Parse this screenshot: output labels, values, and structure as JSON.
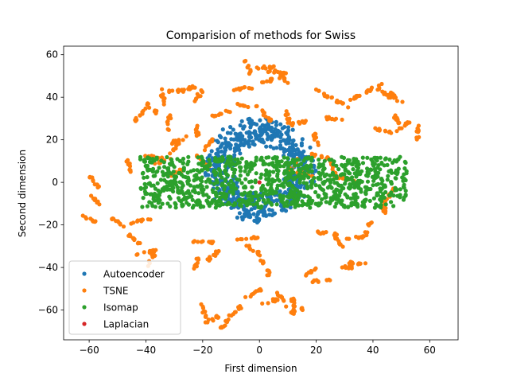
{
  "chart_data": {
    "type": "scatter",
    "title": "Comparision of methods for Swiss",
    "xlabel": "First dimension",
    "ylabel": "Second dimension",
    "xlim": [
      -69,
      70
    ],
    "ylim": [
      -74,
      64
    ],
    "xticks": [
      -60,
      -40,
      -20,
      0,
      20,
      40,
      60
    ],
    "yticks": [
      -60,
      -40,
      -20,
      0,
      20,
      40,
      60
    ],
    "grid": false,
    "legend_position": "lower-left",
    "series": [
      {
        "name": "Autoencoder",
        "color": "#1f77b4",
        "shape": "ring",
        "center": [
          0,
          6
        ],
        "radius_x": [
          9,
          20
        ],
        "radius_y": [
          11,
          25
        ],
        "count": 600
      },
      {
        "name": "TSNE",
        "color": "#ff7f0e",
        "shape": "clusters",
        "clusters": [
          [
            -60,
            -17
          ],
          [
            -58,
            -8
          ],
          [
            -58,
            0
          ],
          [
            -50,
            -19
          ],
          [
            -46,
            8
          ],
          [
            -42,
            -18
          ],
          [
            -44,
            -27
          ],
          [
            -40,
            -33
          ],
          [
            -38,
            -36
          ],
          [
            -42,
            32
          ],
          [
            -38,
            35
          ],
          [
            -34,
            40
          ],
          [
            -30,
            43
          ],
          [
            -26,
            44
          ],
          [
            -22,
            40
          ],
          [
            -32,
            28
          ],
          [
            -28,
            20
          ],
          [
            -22,
            24
          ],
          [
            -20,
            10
          ],
          [
            -18,
            18
          ],
          [
            -14,
            32
          ],
          [
            -20,
            -28
          ],
          [
            -16,
            -34
          ],
          [
            -22,
            -38
          ],
          [
            -20,
            -60
          ],
          [
            -16,
            -64
          ],
          [
            -12,
            -66
          ],
          [
            -8,
            -60
          ],
          [
            -4,
            -26
          ],
          [
            -2,
            -32
          ],
          [
            2,
            -40
          ],
          [
            -2,
            -52
          ],
          [
            4,
            -56
          ],
          [
            8,
            -55
          ],
          [
            12,
            -58
          ],
          [
            14,
            -60
          ],
          [
            -6,
            44
          ],
          [
            -4,
            54
          ],
          [
            2,
            54
          ],
          [
            6,
            52
          ],
          [
            8,
            50
          ],
          [
            4,
            48
          ],
          [
            -4,
            36
          ],
          [
            2,
            32
          ],
          [
            10,
            30
          ],
          [
            14,
            28
          ],
          [
            18,
            -42
          ],
          [
            22,
            -46
          ],
          [
            24,
            -24
          ],
          [
            28,
            -28
          ],
          [
            30,
            -40
          ],
          [
            34,
            -38
          ],
          [
            34,
            -26
          ],
          [
            38,
            -22
          ],
          [
            44,
            -12
          ],
          [
            46,
            -6
          ],
          [
            22,
            42
          ],
          [
            28,
            38
          ],
          [
            26,
            30
          ],
          [
            34,
            40
          ],
          [
            40,
            44
          ],
          [
            44,
            42
          ],
          [
            48,
            40
          ],
          [
            48,
            30
          ],
          [
            44,
            24
          ],
          [
            50,
            26
          ],
          [
            56,
            24
          ],
          [
            20,
            20
          ],
          [
            22,
            12
          ],
          [
            26,
            6
          ],
          [
            30,
            2
          ],
          [
            -30,
            4
          ],
          [
            -34,
            10
          ],
          [
            -38,
            12
          ],
          [
            -30,
            16
          ],
          [
            12,
            8
          ],
          [
            16,
            4
          ]
        ],
        "count": 760
      },
      {
        "name": "Isomap",
        "color": "#2ca02c",
        "shape": "band",
        "x_range": [
          -42,
          52
        ],
        "y_range": [
          -12,
          12
        ],
        "count": 1000
      },
      {
        "name": "Laplacian",
        "color": "#d62728",
        "shape": "point",
        "points": [
          [
            0,
            0
          ]
        ]
      }
    ]
  }
}
